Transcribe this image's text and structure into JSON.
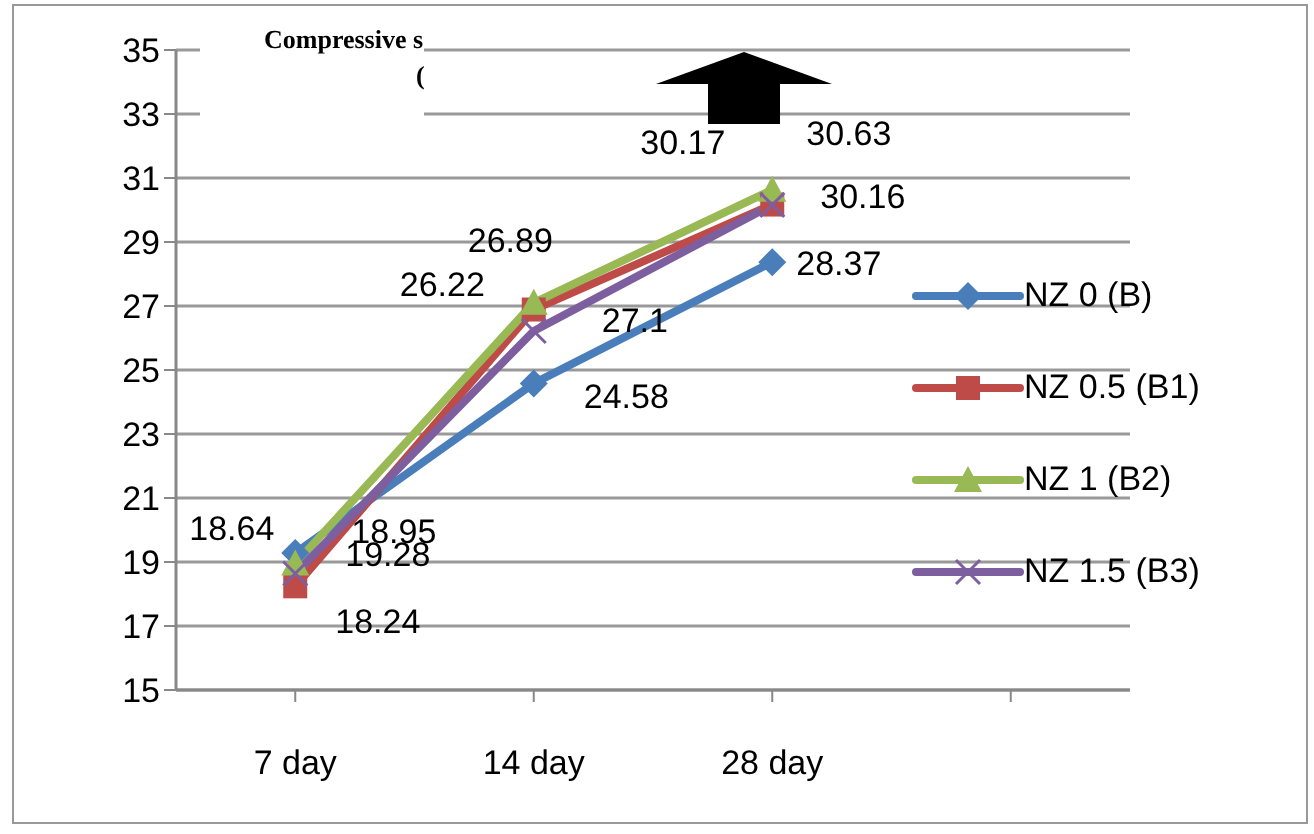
{
  "chart_data": {
    "type": "line",
    "title": "Compressive s",
    "subtitle": "(",
    "categories": [
      "7 day",
      "14 day",
      "28 day",
      null
    ],
    "series": [
      {
        "name": "NZ 0 (B)",
        "color": "#4a7ebb",
        "marker": "diamond",
        "values": [
          19.28,
          24.58,
          28.37,
          null
        ]
      },
      {
        "name": "NZ 0.5 (B1)",
        "color": "#be4b48",
        "marker": "square",
        "values": [
          18.24,
          26.89,
          30.17,
          null
        ]
      },
      {
        "name": "NZ 1 (B2)",
        "color": "#98b954",
        "marker": "triangle",
        "values": [
          18.95,
          27.1,
          30.63,
          null
        ]
      },
      {
        "name": "NZ 1.5 (B3)",
        "color": "#7d5fa0",
        "marker": "cross",
        "values": [
          18.64,
          26.22,
          30.16,
          null
        ]
      }
    ],
    "ylim": [
      15,
      35
    ],
    "yticks": [
      15,
      17,
      19,
      21,
      23,
      25,
      27,
      29,
      31,
      33,
      35
    ],
    "grid": "y",
    "legend": "right",
    "data_labels": true
  }
}
